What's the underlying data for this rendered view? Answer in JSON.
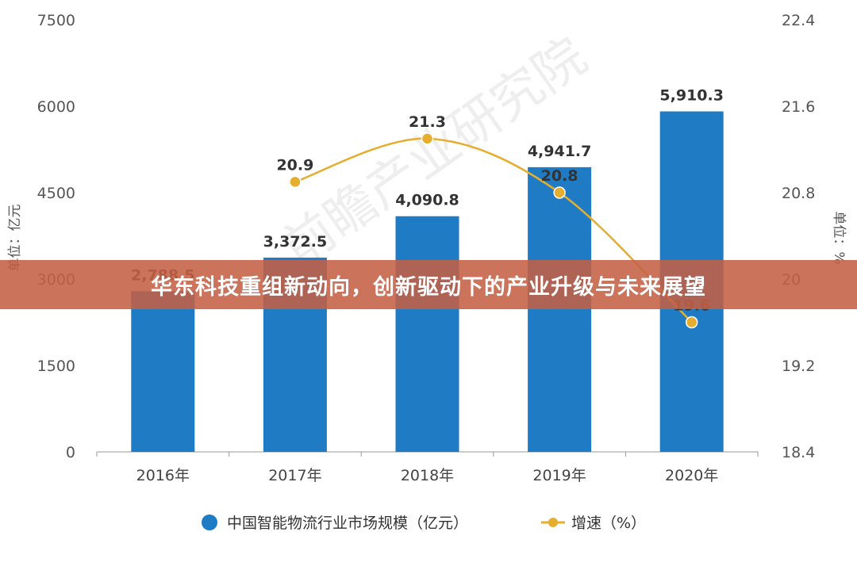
{
  "headline": "华东科技重组新动向，创新驱动下的产业升级与未来展望",
  "watermark": "前瞻产业研究院",
  "colors": {
    "bar": "#1f7cc4",
    "line": "#e6ad2e",
    "banner": "#c46044",
    "axis_text": "#555555",
    "label_text": "#333333"
  },
  "chart_data": {
    "type": "bar",
    "categories": [
      "2016年",
      "2017年",
      "2018年",
      "2019年",
      "2020年"
    ],
    "left_axis": {
      "label": "单位：亿元",
      "ticks": [
        "0",
        "1500",
        "3000",
        "4500",
        "6000",
        "7500"
      ],
      "ylim": [
        0,
        7500
      ]
    },
    "right_axis": {
      "label": "单位：%",
      "ticks": [
        "18.4",
        "19.2",
        "20",
        "20.8",
        "21.6",
        "22.4"
      ],
      "ylim": [
        18.4,
        22.4
      ]
    },
    "series": [
      {
        "name": "中国智能物流行业市场规模（亿元）",
        "type": "bar",
        "axis": "left",
        "values": [
          2788.5,
          3372.5,
          4090.8,
          4941.7,
          5910.3
        ],
        "labels": [
          "2,788.5",
          "3,372.5",
          "4,090.8",
          "4,941.7",
          "5,910.3"
        ]
      },
      {
        "name": "增速（%）",
        "type": "line",
        "axis": "right",
        "values": [
          null,
          20.9,
          21.3,
          20.8,
          19.6
        ],
        "labels": [
          "",
          "20.9",
          "21.3",
          "20.8",
          "19.6"
        ]
      }
    ],
    "grid": false,
    "legend_position": "bottom"
  }
}
